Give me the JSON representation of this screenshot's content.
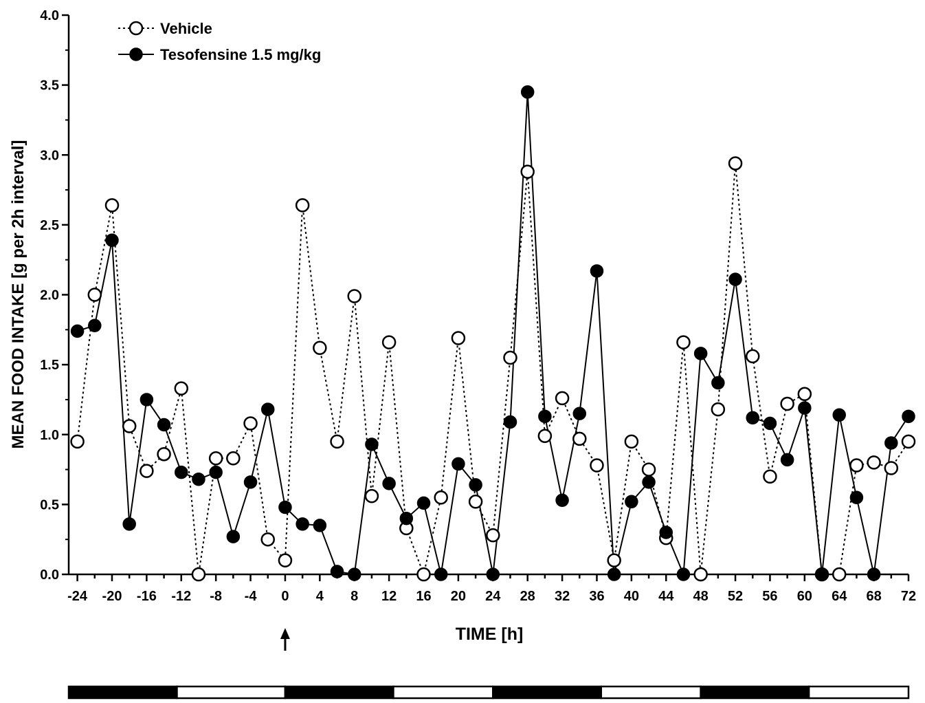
{
  "chart_data": {
    "type": "line",
    "title": "",
    "xlabel": "TIME [h]",
    "ylabel": "MEAN FOOD INTAKE [g per 2h interval]",
    "xlim": [
      -25,
      72
    ],
    "ylim": [
      0,
      4.0
    ],
    "xticks": [
      -24,
      -20,
      -16,
      -12,
      -8,
      -4,
      0,
      4,
      8,
      12,
      16,
      20,
      24,
      28,
      32,
      36,
      40,
      44,
      48,
      52,
      56,
      60,
      64,
      68,
      72
    ],
    "yticks": [
      "0.0",
      "0.5",
      "1.0",
      "1.5",
      "2.0",
      "2.5",
      "3.0",
      "3.5",
      "4.0"
    ],
    "grid": false,
    "legend_position": "top-left",
    "x": [
      -24,
      -22,
      -20,
      -18,
      -16,
      -14,
      -12,
      -10,
      -8,
      -6,
      -4,
      -2,
      0,
      2,
      4,
      6,
      8,
      10,
      12,
      14,
      16,
      18,
      20,
      22,
      24,
      26,
      28,
      30,
      32,
      34,
      36,
      38,
      40,
      42,
      44,
      46,
      48,
      50,
      52,
      54,
      56,
      58,
      60,
      62,
      64,
      66,
      68,
      70,
      72
    ],
    "series": [
      {
        "name": "Vehicle",
        "style": "dotted-line-open-circle",
        "color": "#000000",
        "values": [
          0.95,
          2.0,
          2.64,
          1.06,
          0.74,
          0.86,
          1.33,
          0.0,
          0.83,
          0.83,
          1.08,
          0.25,
          0.1,
          2.64,
          1.62,
          0.95,
          1.99,
          0.56,
          1.66,
          0.33,
          0.0,
          0.55,
          1.69,
          0.52,
          0.28,
          1.55,
          2.88,
          0.99,
          1.26,
          0.97,
          0.78,
          0.1,
          0.95,
          0.75,
          0.26,
          1.66,
          0.0,
          1.18,
          2.94,
          1.56,
          0.7,
          1.22,
          1.29,
          0.0,
          0.0,
          0.78,
          0.8,
          0.76,
          0.95
        ]
      },
      {
        "name": "Tesofensine 1.5 mg/kg",
        "style": "solid-line-filled-circle",
        "color": "#000000",
        "values": [
          1.74,
          1.78,
          2.39,
          0.36,
          1.25,
          1.07,
          0.73,
          0.68,
          0.73,
          0.27,
          0.66,
          1.18,
          0.48,
          0.36,
          0.35,
          0.02,
          0.0,
          0.93,
          0.65,
          0.4,
          0.51,
          0.0,
          0.79,
          0.64,
          0.0,
          1.09,
          3.45,
          1.13,
          0.53,
          1.15,
          2.17,
          0.0,
          0.52,
          0.66,
          0.3,
          0.0,
          1.58,
          1.37,
          2.11,
          1.12,
          1.08,
          0.82,
          1.19,
          0.0,
          1.14,
          0.55,
          0.0,
          0.94,
          1.13
        ]
      }
    ],
    "annotations": [
      {
        "type": "arrow",
        "at_x": 0,
        "meaning": "dosing time marker"
      }
    ],
    "light_dark_bar": [
      {
        "from": -25,
        "to": -12.5,
        "phase": "dark"
      },
      {
        "from": -12.5,
        "to": 0,
        "phase": "light"
      },
      {
        "from": 0,
        "to": 12.5,
        "phase": "dark"
      },
      {
        "from": 12.5,
        "to": 24,
        "phase": "light"
      },
      {
        "from": 24,
        "to": 36.5,
        "phase": "dark"
      },
      {
        "from": 36.5,
        "to": 48,
        "phase": "light"
      },
      {
        "from": 48,
        "to": 60.5,
        "phase": "dark"
      },
      {
        "from": 60.5,
        "to": 72,
        "phase": "light"
      }
    ]
  }
}
